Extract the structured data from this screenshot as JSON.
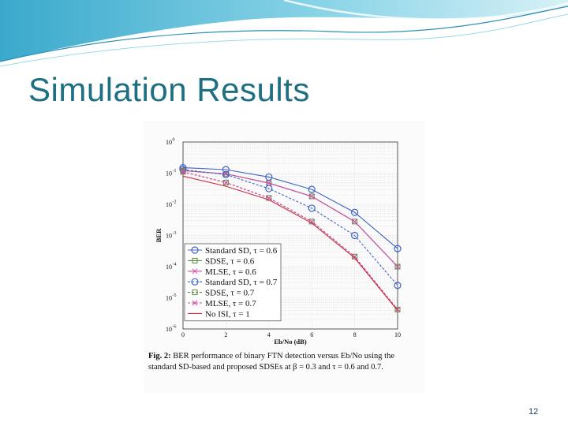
{
  "slide": {
    "title": "Simulation Results",
    "page_number": "12",
    "accent": "#1f6f82",
    "swoosh_colors": [
      "#5bc6dc",
      "#a9e1ee",
      "#2d8fb3"
    ]
  },
  "figure": {
    "caption": "Fig. 2: BER performance of binary FTN detection versus Eb/No using the standard SD-based and proposed SDSEs at β = 0.3 and τ = 0.6 and 0.7.",
    "caption_lead": "Fig. 2:",
    "caption_body": "BER performance of binary FTN detection versus Eb/No using the standard SD-based and proposed SDSEs at β = 0.3 and τ = 0.6 and 0.7."
  },
  "chart_data": {
    "type": "line",
    "title": "",
    "xlabel": "Eb/No (dB)",
    "ylabel": "BER",
    "xlim": [
      0,
      10
    ],
    "ylim": [
      1e-06,
      1
    ],
    "yscale": "log",
    "grid": true,
    "legend_position": "bottom-left",
    "x": [
      0,
      2,
      4,
      6,
      8,
      10
    ],
    "xticks": [
      "0",
      "2",
      "4",
      "6",
      "8",
      "10"
    ],
    "yticks": [
      {
        "base": "10",
        "exp": "0",
        "value": 1
      },
      {
        "base": "10",
        "exp": "-1",
        "value": 0.1
      },
      {
        "base": "10",
        "exp": "-2",
        "value": 0.01
      },
      {
        "base": "10",
        "exp": "-3",
        "value": 0.001
      },
      {
        "base": "10",
        "exp": "-4",
        "value": 0.0001
      },
      {
        "base": "10",
        "exp": "-5",
        "value": 1e-05
      },
      {
        "base": "10",
        "exp": "-6",
        "value": 1e-06
      }
    ],
    "series": [
      {
        "name": "Standard SD, τ = 0.6",
        "color": "#3f63c6",
        "marker": "circle",
        "dash": "solid",
        "values": [
          0.15,
          0.13,
          0.075,
          0.03,
          0.0055,
          0.00038
        ]
      },
      {
        "name": "SDSE, τ = 0.6",
        "color": "#5a8a3c",
        "marker": "square",
        "dash": "solid",
        "values": [
          0.12,
          0.095,
          0.048,
          0.018,
          0.0028,
          0.0001
        ]
      },
      {
        "name": "MLSE, τ = 0.6",
        "color": "#d24aa8",
        "marker": "x",
        "dash": "solid",
        "values": [
          0.12,
          0.095,
          0.048,
          0.018,
          0.0028,
          0.0001
        ]
      },
      {
        "name": "Standard SD, τ = 0.7",
        "color": "#3f63c6",
        "marker": "circle",
        "dash": "dashed",
        "values": [
          0.13,
          0.09,
          0.032,
          0.0075,
          0.001,
          2.5e-05
        ]
      },
      {
        "name": "SDSE, τ = 0.7",
        "color": "#5a8a3c",
        "marker": "square",
        "dash": "dashed",
        "values": [
          0.11,
          0.05,
          0.016,
          0.0028,
          0.00021,
          4.2e-06
        ]
      },
      {
        "name": "MLSE, τ = 0.7",
        "color": "#d24aa8",
        "marker": "x",
        "dash": "dashed",
        "values": [
          0.11,
          0.05,
          0.016,
          0.0028,
          0.00021,
          4.2e-06
        ]
      },
      {
        "name": "No ISI, τ = 1",
        "color": "#cc2a3a",
        "marker": "none",
        "dash": "solid",
        "values": [
          0.08,
          0.038,
          0.014,
          0.0025,
          0.00019,
          3.9e-06
        ]
      }
    ]
  }
}
